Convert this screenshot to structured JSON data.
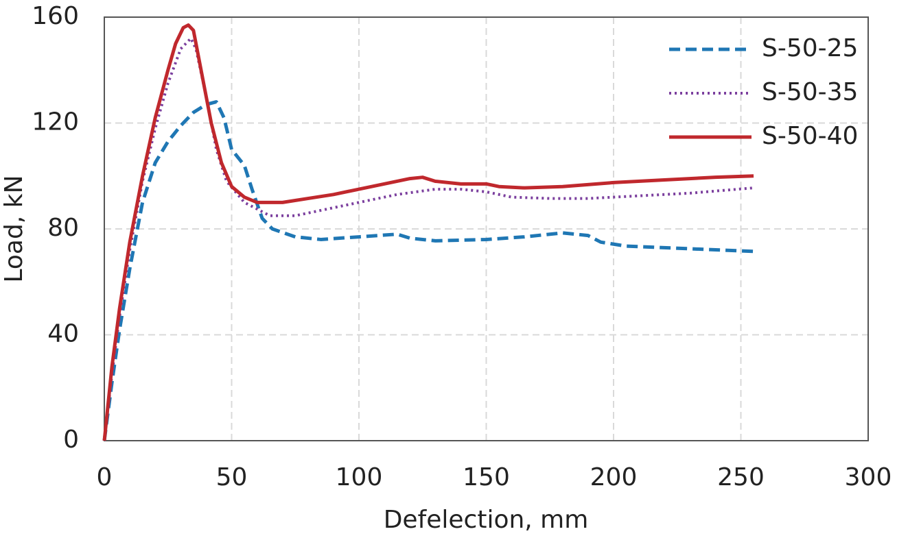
{
  "chart_data": {
    "type": "line",
    "xlabel": "Defelection, mm",
    "ylabel": "Load, kN",
    "xlim": [
      0,
      300
    ],
    "xticks": [
      0,
      50,
      100,
      150,
      200,
      250,
      300
    ],
    "ylim": [
      0,
      160
    ],
    "yticks": [
      0,
      40,
      80,
      120,
      160
    ],
    "grid": true,
    "legend": "upper right",
    "series": [
      {
        "name": "S-50-25",
        "color": "#1f77b4",
        "linestyle": "dashed",
        "x": [
          0,
          3,
          6,
          10,
          15,
          20,
          25,
          30,
          35,
          40,
          44,
          47,
          50,
          55,
          58,
          62,
          66,
          75,
          85,
          100,
          115,
          120,
          130,
          150,
          165,
          180,
          190,
          195,
          205,
          230,
          255
        ],
        "values": [
          0,
          22,
          42,
          65,
          90,
          105,
          113,
          119,
          124,
          127,
          128,
          122,
          110,
          104,
          95,
          84,
          80,
          77,
          76,
          77,
          78,
          76.5,
          75.5,
          76,
          77,
          78.5,
          77.5,
          75,
          73.5,
          72.5,
          71.5
        ]
      },
      {
        "name": "S-50-35",
        "color": "#7b3f9e",
        "linestyle": "dotted",
        "x": [
          0,
          3,
          6,
          10,
          15,
          20,
          25,
          30,
          34,
          36,
          40,
          44,
          48,
          55,
          65,
          75,
          85,
          100,
          115,
          130,
          140,
          150,
          160,
          175,
          190,
          210,
          230,
          255
        ],
        "values": [
          0,
          25,
          47,
          72,
          98,
          118,
          135,
          148,
          152,
          148,
          130,
          110,
          98,
          90,
          85,
          85,
          87,
          90,
          93,
          95,
          95,
          94,
          92,
          91.5,
          91.5,
          92.5,
          93.5,
          95.5
        ]
      },
      {
        "name": "S-50-40",
        "color": "#c0282d",
        "linestyle": "solid",
        "x": [
          0,
          3,
          6,
          10,
          15,
          20,
          25,
          28,
          31,
          33,
          35,
          38,
          42,
          46,
          50,
          55,
          60,
          70,
          80,
          90,
          100,
          110,
          120,
          125,
          130,
          140,
          150,
          155,
          165,
          180,
          200,
          220,
          240,
          255
        ],
        "values": [
          0,
          28,
          50,
          75,
          100,
          122,
          140,
          150,
          156,
          157,
          155,
          140,
          120,
          105,
          96,
          92,
          90,
          90,
          91.5,
          93,
          95,
          97,
          99,
          99.5,
          98,
          97,
          97,
          96,
          95.5,
          96,
          97.5,
          98.5,
          99.5,
          100
        ]
      }
    ]
  }
}
